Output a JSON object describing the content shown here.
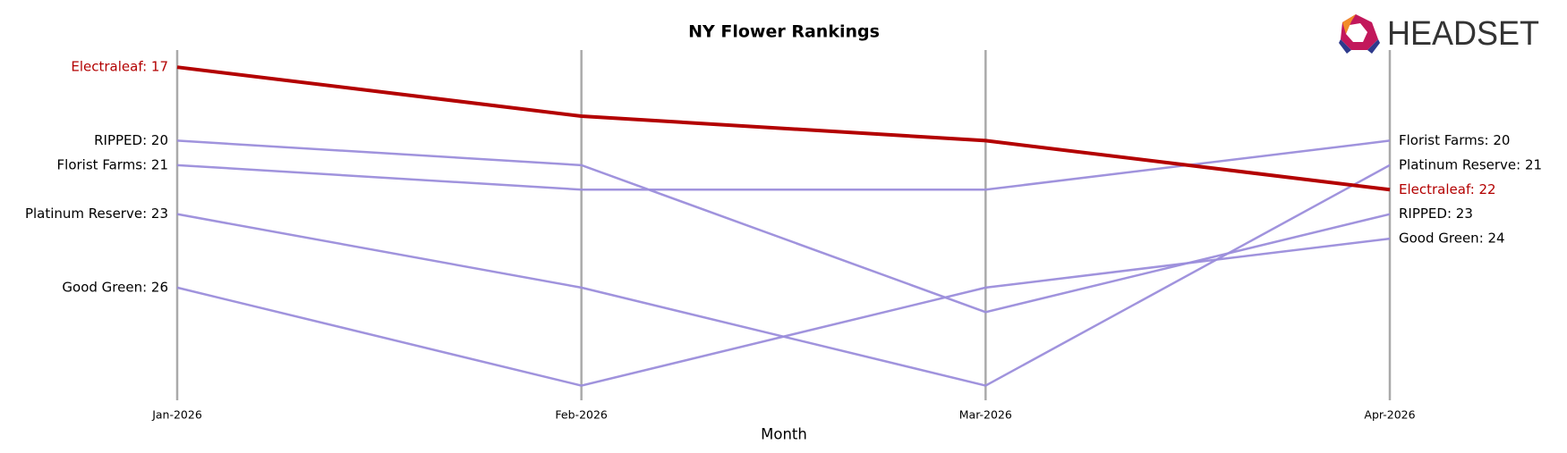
{
  "chart_data": {
    "type": "bump",
    "title": "NY Flower Rankings",
    "x_label": "Month",
    "logo": "HEADSET",
    "categories": [
      "Jan-2026",
      "Feb-2026",
      "Mar-2026",
      "Apr-2026"
    ],
    "ylim": [
      30.6,
      16.3
    ],
    "inverted": true,
    "series": [
      {
        "name": "RIPPED",
        "color": "#9b8ddb",
        "values": [
          20,
          21,
          27,
          23
        ],
        "value_labels": [
          "RIPPED: 20",
          null,
          null,
          "RIPPED: 23"
        ]
      },
      {
        "name": "Florist Farms",
        "color": "#9b8ddb",
        "values": [
          21,
          22,
          22,
          20
        ],
        "value_labels": [
          "Florist Farms: 21",
          null,
          null,
          "Florist Farms: 20"
        ]
      },
      {
        "name": "Platinum Reserve",
        "color": "#9b8ddb",
        "values": [
          23,
          26,
          30,
          21
        ],
        "value_labels": [
          "Platinum Reserve: 23",
          null,
          null,
          "Platinum Reserve: 21"
        ]
      },
      {
        "name": "Good Green",
        "color": "#9b8ddb",
        "values": [
          26,
          30,
          26,
          24
        ],
        "value_labels": [
          "Good Green: 26",
          null,
          null,
          "Good Green: 24"
        ]
      },
      {
        "name": "Electraleaf",
        "color": "#b30000",
        "values": [
          17,
          19,
          20,
          22
        ],
        "value_labels": [
          "Electraleaf: 17",
          null,
          null,
          "Electraleaf: 22"
        ]
      }
    ]
  }
}
